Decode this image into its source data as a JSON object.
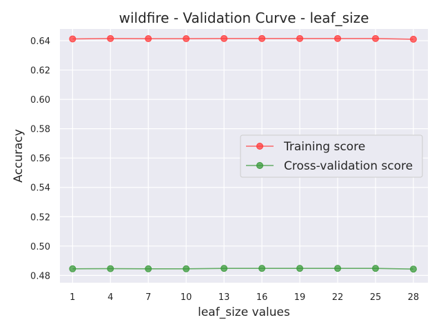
{
  "chart_data": {
    "type": "line",
    "title": "wildfire - Validation Curve - leaf_size",
    "xlabel": "leaf_size values",
    "ylabel": "Accuracy",
    "x": [
      1,
      4,
      7,
      10,
      13,
      16,
      19,
      22,
      25,
      28
    ],
    "ylim": [
      0.475,
      0.648
    ],
    "yticks": [
      "0.48",
      "0.50",
      "0.52",
      "0.54",
      "0.56",
      "0.58",
      "0.60",
      "0.62",
      "0.64"
    ],
    "grid": true,
    "legend_position": "center-right",
    "series": [
      {
        "name": "Training score",
        "color": "#ff3b3b",
        "values": [
          0.6412,
          0.6415,
          0.6414,
          0.6414,
          0.6415,
          0.6415,
          0.6415,
          0.6415,
          0.6415,
          0.641
        ]
      },
      {
        "name": "Cross-validation score",
        "color": "#3a9a3a",
        "values": [
          0.4845,
          0.4846,
          0.4845,
          0.4845,
          0.4848,
          0.4848,
          0.4848,
          0.4848,
          0.4848,
          0.4843
        ]
      }
    ]
  }
}
